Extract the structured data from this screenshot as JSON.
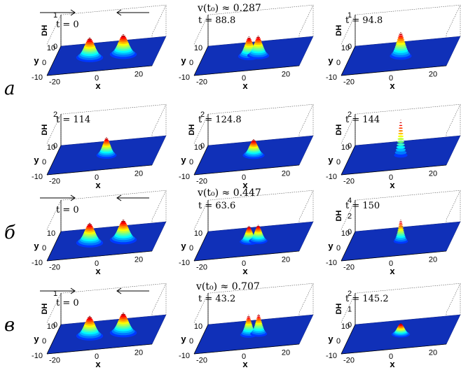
{
  "figure": {
    "axis": {
      "x_label": "x",
      "y_label": "y",
      "z_label": "DH",
      "x_ticks": [
        "-20",
        "0",
        "20"
      ],
      "y_ticks": [
        "10",
        "0",
        "-10"
      ]
    },
    "groups": [
      {
        "label": "а",
        "velocity": "v(t₀) ≈ 0.287",
        "arrows": true,
        "rows": [
          {
            "panels": [
              {
                "time": "t = 0",
                "z_ticks": [
                  "1",
                  "0"
                ],
                "peaks": [
                  {
                    "x": -8,
                    "y": 0,
                    "h": 1.0,
                    "w": 3.2
                  },
                  {
                    "x": 8,
                    "y": 0,
                    "h": 1.0,
                    "w": 3.2
                  }
                ]
              },
              {
                "time": "t = 88.8",
                "z_ticks": [],
                "peaks": [
                  {
                    "x": -2.2,
                    "y": 0,
                    "h": 1.0,
                    "w": 2.6
                  },
                  {
                    "x": 2.2,
                    "y": 0,
                    "h": 1.0,
                    "w": 2.6
                  }
                ]
              },
              {
                "time": "t = 94.8",
                "z_ticks": [
                  "1",
                  "0"
                ],
                "peaks": [
                  {
                    "x": 0,
                    "y": 0,
                    "h": 1.2,
                    "w": 2.6
                  }
                ]
              }
            ]
          },
          {
            "panels": [
              {
                "time": "t = 114",
                "z_ticks": [
                  "2",
                  "0"
                ],
                "peaks": [
                  {
                    "x": 0,
                    "y": 0,
                    "h": 0.9,
                    "w": 2.4
                  }
                ]
              },
              {
                "time": "t = 124.8",
                "z_ticks": [
                  "2",
                  "0"
                ],
                "peaks": [
                  {
                    "x": 0,
                    "y": 0,
                    "h": 0.8,
                    "w": 2.6
                  }
                ]
              },
              {
                "time": "t = 144",
                "z_ticks": [
                  "2",
                  "0"
                ],
                "peaks": [
                  {
                    "x": 0,
                    "y": 0,
                    "h": 1.8,
                    "w": 1.6
                  }
                ]
              }
            ]
          }
        ]
      },
      {
        "label": "б",
        "velocity": "v(t₀) ≈ 0.447",
        "arrows": true,
        "rows": [
          {
            "panels": [
              {
                "time": "t = 0",
                "z_ticks": [],
                "peaks": [
                  {
                    "x": -8,
                    "y": 0,
                    "h": 1.0,
                    "w": 3.2
                  },
                  {
                    "x": 8,
                    "y": 0,
                    "h": 1.0,
                    "w": 3.2
                  }
                ]
              },
              {
                "time": "t = 63.6",
                "z_ticks": [],
                "peaks": [
                  {
                    "x": -2.2,
                    "y": 0,
                    "h": 0.8,
                    "w": 2.2
                  },
                  {
                    "x": 2.2,
                    "y": 0,
                    "h": 0.8,
                    "w": 2.2
                  }
                ]
              },
              {
                "time": "t = 150",
                "z_ticks": [
                  "4",
                  "2",
                  "0"
                ],
                "peaks": [
                  {
                    "x": 0,
                    "y": 0,
                    "h": 1.1,
                    "w": 1.7
                  }
                ]
              }
            ]
          }
        ]
      },
      {
        "label": "в",
        "velocity": "v(t₀) ≈ 0.707",
        "arrows": true,
        "rows": [
          {
            "panels": [
              {
                "time": "t = 0",
                "z_ticks": [
                  "1",
                  "0"
                ],
                "peaks": [
                  {
                    "x": -8,
                    "y": 0,
                    "h": 1.0,
                    "w": 3.2
                  },
                  {
                    "x": 8,
                    "y": 0,
                    "h": 1.0,
                    "w": 3.2
                  }
                ]
              },
              {
                "time": "t = 43.2",
                "z_ticks": [],
                "peaks": [
                  {
                    "x": -2.4,
                    "y": 0,
                    "h": 1.0,
                    "w": 2.0
                  },
                  {
                    "x": 2.4,
                    "y": 0,
                    "h": 1.0,
                    "w": 2.0
                  }
                ]
              },
              {
                "time": "t = 145.2",
                "z_ticks": [
                  "2",
                  "1",
                  "0"
                ],
                "peaks": [
                  {
                    "x": 0,
                    "y": 0,
                    "h": 0.55,
                    "w": 2.2
                  }
                ]
              }
            ]
          }
        ]
      }
    ]
  }
}
